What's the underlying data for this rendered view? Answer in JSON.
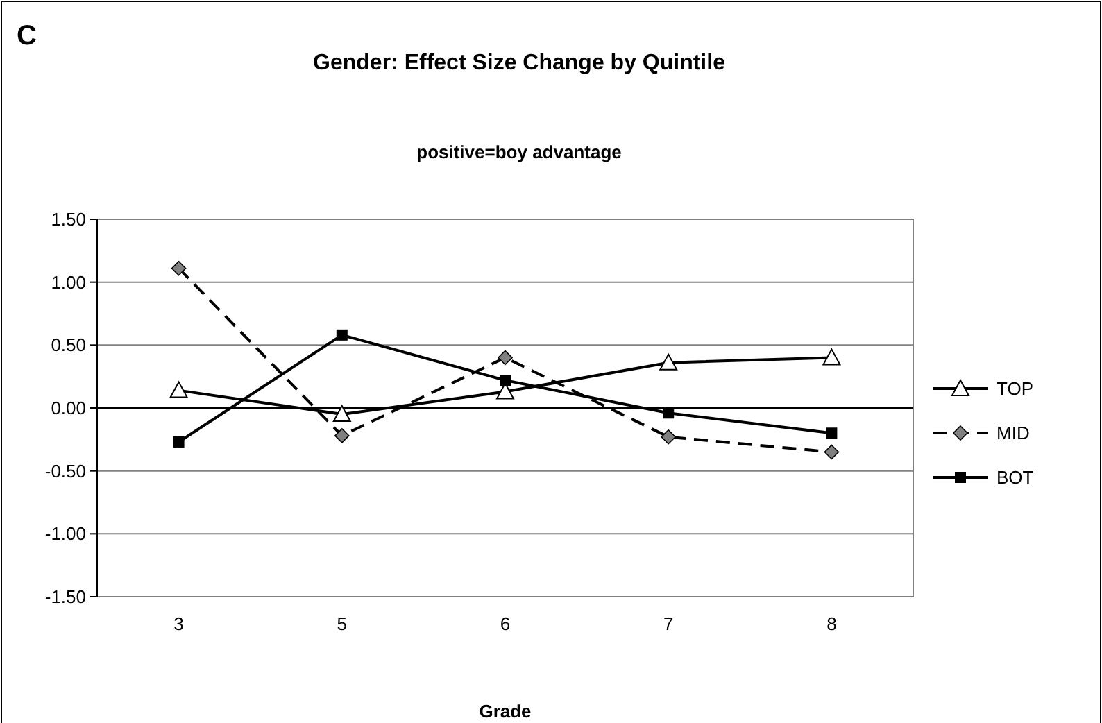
{
  "chart_data": {
    "type": "line",
    "title": "Gender: Effect Size Change by Quintile",
    "subtitle": "positive=boy advantage",
    "xlabel": "Grade",
    "annotations": [
      "C"
    ],
    "categories": [
      "3",
      "5",
      "6",
      "7",
      "8"
    ],
    "series": [
      {
        "name": "TOP",
        "color": "#000000",
        "marker": "triangle",
        "line_style": "solid",
        "values": [
          0.14,
          -0.05,
          0.13,
          0.36,
          0.4
        ]
      },
      {
        "name": "MID",
        "color": "#000000",
        "marker": "diamond",
        "line_style": "dashed",
        "values": [
          1.11,
          -0.22,
          0.4,
          -0.23,
          -0.35
        ]
      },
      {
        "name": "BOT",
        "color": "#000000",
        "marker": "square",
        "line_style": "solid",
        "values": [
          -0.27,
          0.58,
          0.22,
          -0.04,
          -0.2
        ]
      }
    ],
    "ylim": [
      -1.5,
      1.5
    ],
    "yticks": [
      {
        "value": -1.5,
        "label": "-1.50"
      },
      {
        "value": -1,
        "label": "-1.00"
      },
      {
        "value": -0.5,
        "label": "-0.50"
      },
      {
        "value": 0,
        "label": "0.00"
      },
      {
        "value": 0.5,
        "label": "0.50"
      },
      {
        "value": 1,
        "label": "1.00"
      },
      {
        "value": 1.5,
        "label": "1.50"
      }
    ],
    "ref_lines": [
      {
        "axis": "y",
        "value": 0,
        "label": null,
        "color": "#000000"
      }
    ],
    "grid": "y",
    "legend": "right"
  }
}
